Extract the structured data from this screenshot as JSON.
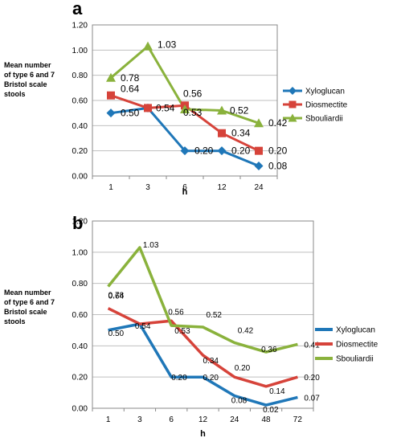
{
  "colors": {
    "xyloglucan": "#1f77b8",
    "diosmectite": "#d6433a",
    "sbouliardii": "#8ab23c"
  },
  "chart_data": [
    {
      "panel_label": "a",
      "type": "line",
      "categories": [
        "1",
        "3",
        "6",
        "12",
        "24"
      ],
      "xlabel": "h",
      "ylabel": [
        "Mean number",
        "of type 6 and 7",
        "Bristol scale",
        "stools"
      ],
      "ylim": [
        0,
        1.2
      ],
      "yticks": [
        "0.00",
        "0.20",
        "0.40",
        "0.60",
        "0.80",
        "1.00",
        "1.20"
      ],
      "markers": true,
      "legend_position": "right",
      "series": [
        {
          "name": "Xyloglucan",
          "values": [
            0.5,
            0.54,
            0.2,
            0.2,
            0.08
          ],
          "labels": [
            "0.50",
            "0.54",
            "0.20",
            "0.20",
            "0.08"
          ]
        },
        {
          "name": "Diosmectite",
          "values": [
            0.64,
            0.54,
            0.56,
            0.34,
            0.2
          ],
          "labels": [
            "0.64",
            "",
            "0.56",
            "0.34",
            "0.20"
          ]
        },
        {
          "name": "Sbouliardii",
          "values": [
            0.78,
            1.03,
            0.53,
            0.52,
            0.42
          ],
          "labels": [
            "0.78",
            "1.03",
            "0.53",
            "0.52",
            "0.42"
          ]
        }
      ]
    },
    {
      "panel_label": "b",
      "type": "line",
      "categories": [
        "1",
        "3",
        "6",
        "12",
        "24",
        "48",
        "72"
      ],
      "xlabel": "h",
      "ylabel": [
        "Mean number",
        "of type 6 and 7",
        "Bristol scale",
        "stools"
      ],
      "ylim": [
        0,
        1.2
      ],
      "yticks": [
        "0.00",
        "0.20",
        "0.40",
        "0.60",
        "0.80",
        "1.00",
        "1.20"
      ],
      "markers": false,
      "legend_position": "right",
      "series": [
        {
          "name": "Xyloglucan",
          "values": [
            0.5,
            0.54,
            0.2,
            0.2,
            0.08,
            0.02,
            0.07
          ],
          "labels": [
            "0.50",
            "0.54",
            "0.20",
            "0.20",
            "0.08",
            "0.02",
            "0.07"
          ]
        },
        {
          "name": "Diosmectite",
          "values": [
            0.64,
            0.54,
            0.56,
            0.34,
            0.2,
            0.14,
            0.2
          ],
          "labels": [
            "0.64",
            "",
            "0.56",
            "0.34",
            "0.20",
            "0.14",
            "0.20"
          ]
        },
        {
          "name": "Sbouliardii",
          "values": [
            0.78,
            1.03,
            0.53,
            0.52,
            0.42,
            0.36,
            0.41
          ],
          "labels": [
            "0.78",
            "1.03",
            "0.53",
            "0.52",
            "0.42",
            "0.36",
            "0.41"
          ]
        }
      ]
    }
  ]
}
